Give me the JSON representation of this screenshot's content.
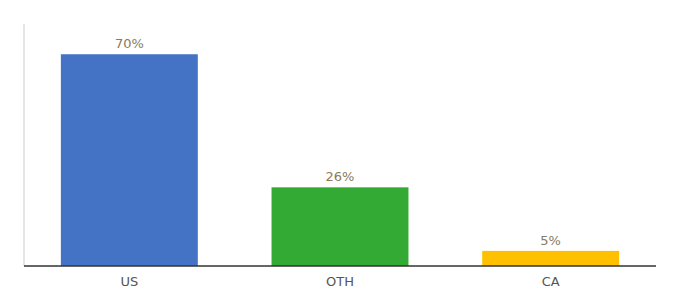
{
  "chart_data": {
    "type": "bar",
    "categories": [
      "US",
      "OTH",
      "CA"
    ],
    "values": [
      70,
      26,
      5
    ],
    "value_labels": [
      "70%",
      "26%",
      "5%"
    ],
    "colors": [
      "#4472C4",
      "#33AA33",
      "#FFC000"
    ],
    "ylim": [
      0,
      80
    ],
    "grid": false,
    "data_labels": true,
    "tick_labels": "x"
  }
}
